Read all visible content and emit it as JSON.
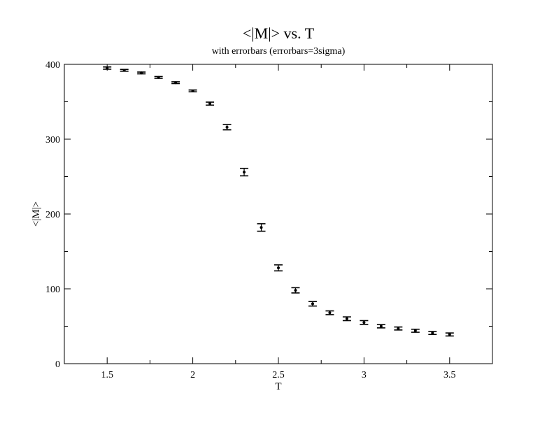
{
  "chart_data": {
    "type": "scatter",
    "title": "<|M|> vs. T",
    "subtitle": "with errorbars (errorbars=3sigma)",
    "xlabel": "T",
    "ylabel": "<|M|>",
    "xlim": [
      1.25,
      3.75
    ],
    "ylim": [
      0,
      400
    ],
    "x_ticks": [
      1.5,
      2,
      2.5,
      3,
      3.5
    ],
    "x_tick_labels": [
      "1.5",
      "2",
      "2.5",
      "3",
      "3.5"
    ],
    "y_ticks": [
      0,
      100,
      200,
      300,
      400
    ],
    "y_tick_labels": [
      "0",
      "100",
      "200",
      "300",
      "400"
    ],
    "grid": false,
    "series": [
      {
        "x": [
          1.5,
          1.6,
          1.7,
          1.8,
          1.9,
          2.0,
          2.1,
          2.2,
          2.3,
          2.4,
          2.5,
          2.6,
          2.7,
          2.8,
          2.9,
          3.0,
          3.1,
          3.2,
          3.3,
          3.4,
          3.5
        ],
        "y": [
          395,
          392,
          388.5,
          382.5,
          375.5,
          364.5,
          347.5,
          316,
          256,
          182,
          128,
          98,
          80,
          68,
          60,
          55,
          50,
          47,
          44,
          41,
          39
        ],
        "err": [
          1.5,
          1.2,
          1.2,
          1.2,
          1.2,
          1.2,
          2,
          3.5,
          5,
          5,
          4,
          3.5,
          3,
          2.5,
          2.5,
          2.5,
          2.2,
          2,
          2,
          2,
          2
        ]
      }
    ]
  }
}
